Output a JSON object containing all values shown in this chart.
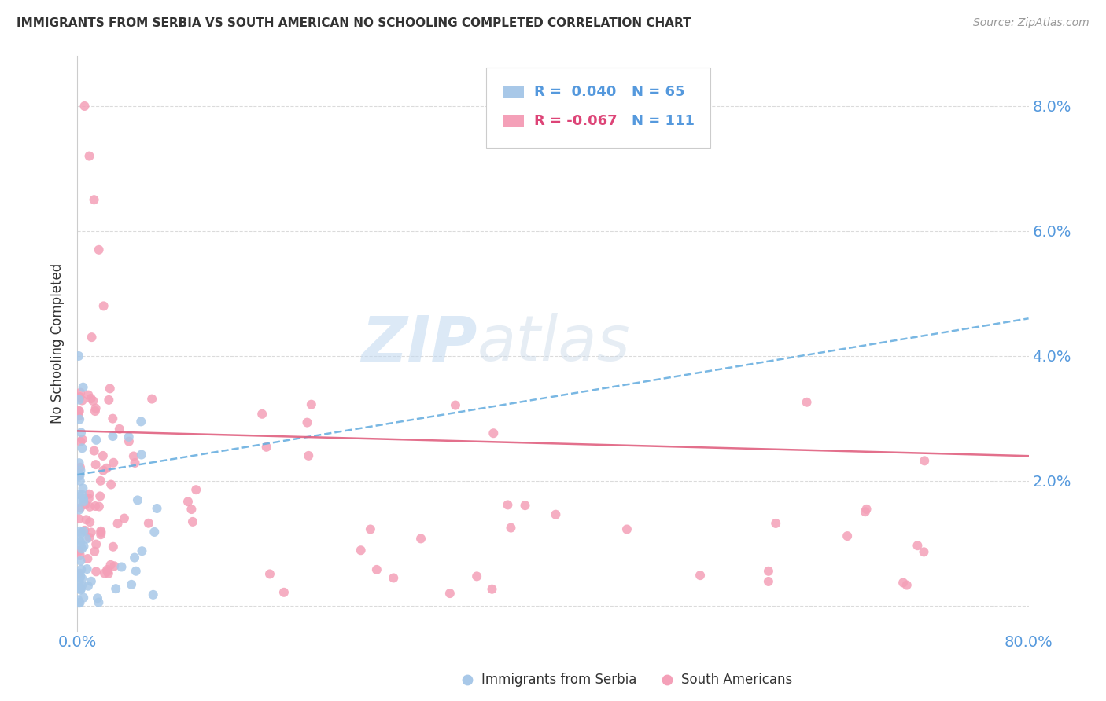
{
  "title": "IMMIGRANTS FROM SERBIA VS SOUTH AMERICAN NO SCHOOLING COMPLETED CORRELATION CHART",
  "source": "Source: ZipAtlas.com",
  "ylabel": "No Schooling Completed",
  "watermark_zip": "ZIP",
  "watermark_atlas": "atlas",
  "xmin": 0.0,
  "xmax": 0.8,
  "ymin": -0.004,
  "ymax": 0.088,
  "yticks": [
    0.0,
    0.02,
    0.04,
    0.06,
    0.08
  ],
  "ytick_labels": [
    "",
    "2.0%",
    "4.0%",
    "6.0%",
    "8.0%"
  ],
  "serbia_color": "#a8c8e8",
  "sa_color": "#f4a0b8",
  "serbia_line_color": "#6ab0e0",
  "sa_line_color": "#e06080",
  "trend_serbia_x0": 0.0,
  "trend_serbia_y0": 0.021,
  "trend_serbia_x1": 0.8,
  "trend_serbia_y1": 0.046,
  "trend_sa_x0": 0.0,
  "trend_sa_y0": 0.028,
  "trend_sa_x1": 0.8,
  "trend_sa_y1": 0.024,
  "background_color": "#ffffff",
  "grid_color": "#d8d8d8",
  "title_color": "#333333",
  "tick_label_color": "#5599dd",
  "legend_r_color_serbia": "#5599dd",
  "legend_r_color_sa": "#dd4477",
  "legend_n_color": "#5599dd",
  "serbia_marker_color": "#a8c8e8",
  "sa_marker_color": "#f4a0b8"
}
